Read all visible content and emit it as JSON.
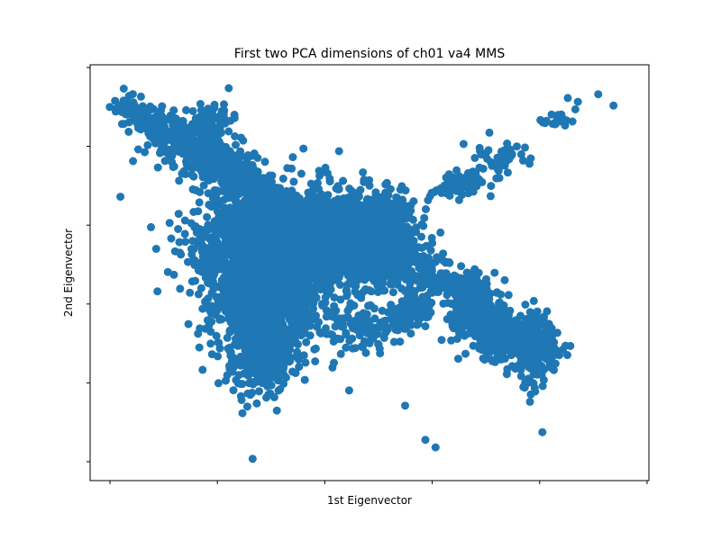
{
  "chart_data": {
    "type": "scatter",
    "title": "First two PCA dimensions of ch01 va4 MMS",
    "xlabel": "1st Eigenvector",
    "ylabel": "2nd Eigenvector",
    "xlim": [
      0,
      100
    ],
    "ylim": [
      0,
      100
    ],
    "tick_labels_visible": false,
    "x_ticks": [
      4,
      24,
      44,
      64,
      84,
      104
    ],
    "y_ticks": [
      5,
      25,
      45,
      65,
      85,
      105
    ],
    "grid": false,
    "legend": "none",
    "color": "#1f77b4",
    "series": [
      {
        "clusters": [
          {
            "x": 5,
            "y": 91,
            "sx": 2.5,
            "sy": 2,
            "n": 80,
            "dx": 0.5,
            "dy": -0.6
          },
          {
            "x": 12,
            "y": 86,
            "sx": 3,
            "sy": 2.5,
            "n": 140,
            "dx": 0.6,
            "dy": -0.6
          },
          {
            "x": 17,
            "y": 82,
            "sx": 3,
            "sy": 3,
            "n": 160,
            "dx": 0.5,
            "dy": -0.6
          },
          {
            "x": 22,
            "y": 77,
            "sx": 3,
            "sy": 3,
            "n": 160,
            "dx": 0.5,
            "dy": -0.6
          },
          {
            "x": 19,
            "y": 90,
            "sx": 2,
            "sy": 2.5,
            "n": 60,
            "dx": 0,
            "dy": 0
          },
          {
            "x": 27,
            "y": 72,
            "sx": 3,
            "sy": 3,
            "n": 140,
            "dx": 0.4,
            "dy": -0.5
          },
          {
            "x": 29,
            "y": 58,
            "sx": 7,
            "sy": 7,
            "n": 900,
            "dx": 0,
            "dy": 0
          },
          {
            "x": 27,
            "y": 43,
            "sx": 4,
            "sy": 8,
            "n": 700,
            "dx": 0,
            "dy": 0
          },
          {
            "x": 30,
            "y": 28,
            "sx": 3,
            "sy": 5,
            "n": 300,
            "dx": 0,
            "dy": 0
          },
          {
            "x": 35,
            "y": 50,
            "sx": 5,
            "sy": 8,
            "n": 600,
            "dx": 0,
            "dy": 0
          },
          {
            "x": 40,
            "y": 60,
            "sx": 7,
            "sy": 6,
            "n": 900,
            "dx": 0,
            "dy": 0
          },
          {
            "x": 48,
            "y": 58,
            "sx": 5,
            "sy": 5,
            "n": 600,
            "dx": 0,
            "dy": 0
          },
          {
            "x": 54,
            "y": 54,
            "sx": 4,
            "sy": 4,
            "n": 300,
            "dx": 0,
            "dy": 0
          },
          {
            "x": 53,
            "y": 66,
            "sx": 3,
            "sy": 2,
            "n": 120,
            "dx": 0,
            "dy": 0
          },
          {
            "x": 49,
            "y": 36,
            "sx": 5,
            "sy": 3,
            "n": 120,
            "dx": 0,
            "dy": 0
          },
          {
            "x": 58,
            "y": 40,
            "sx": 2,
            "sy": 2,
            "n": 90,
            "dx": 0,
            "dy": 0
          },
          {
            "x": 63,
            "y": 48,
            "sx": 4,
            "sy": 2,
            "n": 160,
            "dx": 0.6,
            "dy": -0.4
          },
          {
            "x": 70,
            "y": 40,
            "sx": 2,
            "sy": 4,
            "n": 200,
            "dx": 0,
            "dy": 0
          },
          {
            "x": 75,
            "y": 35,
            "sx": 2,
            "sy": 4,
            "n": 200,
            "dx": 0,
            "dy": 0
          },
          {
            "x": 82,
            "y": 30,
            "sx": 2,
            "sy": 5,
            "n": 220,
            "dx": 0,
            "dy": 0
          },
          {
            "x": 84,
            "y": 32,
            "sx": 3,
            "sy": 1.5,
            "n": 60,
            "dx": 0.6,
            "dy": -0.3
          },
          {
            "x": 68,
            "y": 73,
            "sx": 2,
            "sy": 1.5,
            "n": 80,
            "dx": 0.5,
            "dy": 0.3
          },
          {
            "x": 76,
            "y": 81,
            "sx": 2.5,
            "sy": 2,
            "n": 50,
            "dx": 0,
            "dy": 0
          },
          {
            "x": 87,
            "y": 90,
            "sx": 2,
            "sy": 1,
            "n": 20,
            "dx": 0,
            "dy": 0
          }
        ],
        "outliers": [
          [
            95,
            97
          ],
          [
            98,
            94
          ],
          [
            91,
            95
          ],
          [
            89,
            96
          ],
          [
            90.5,
            93
          ],
          [
            1,
            70
          ],
          [
            7,
            62
          ],
          [
            11,
            59
          ],
          [
            44,
            72
          ],
          [
            42,
            66
          ],
          [
            47,
            71
          ],
          [
            22,
            23
          ],
          [
            25,
            13
          ],
          [
            27,
            1
          ],
          [
            30,
            29
          ],
          [
            61,
            6
          ],
          [
            63,
            4
          ],
          [
            44,
            82
          ],
          [
            57,
            15
          ],
          [
            46,
            19
          ],
          [
            84,
            8
          ],
          [
            33,
            25
          ],
          [
            40,
            37
          ],
          [
            52,
            30
          ],
          [
            60,
            38
          ]
        ]
      }
    ]
  }
}
